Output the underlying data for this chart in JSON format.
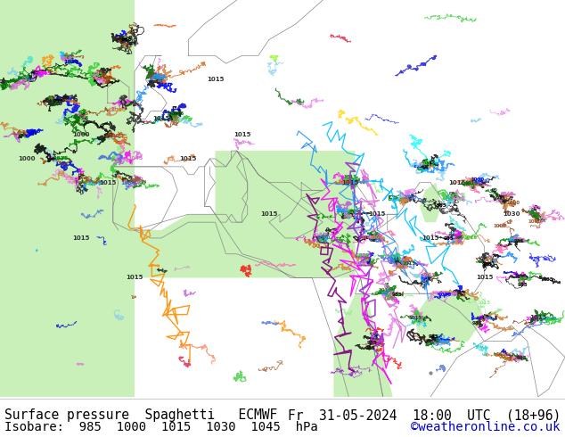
{
  "title_left": "Surface pressure  Spaghetti   ECMWF",
  "title_right": "Fr  31-05-2024  18:00  UTC  (18+96)",
  "subtitle_left": "Isobare:  985  1000  1015  1030  1045  hPa",
  "subtitle_right": "©weatheronline.co.uk",
  "subtitle_right_color": "#0000cc",
  "bg_color": "#b8e090",
  "sea_color": "#c8f0b8",
  "text_color": "#000000",
  "font_size_title": 10.5,
  "font_size_subtitle": 10.0,
  "footer_bg": "#ffffff",
  "border_color": "#888888",
  "map_lon_min": -30,
  "map_lon_max": 75,
  "map_lat_min": 15,
  "map_lat_max": 65
}
